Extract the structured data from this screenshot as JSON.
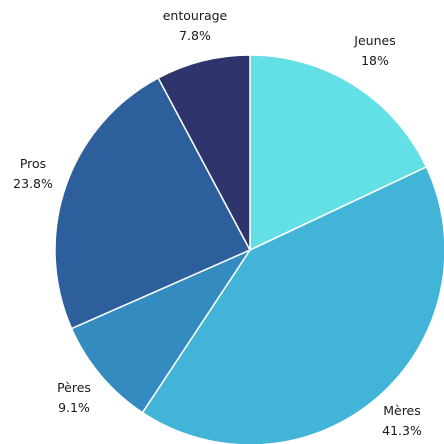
{
  "chart_data": {
    "type": "pie",
    "title": "",
    "start_angle_deg": 0,
    "direction": "clockwise",
    "slices": [
      {
        "label": "Jeunes",
        "value": 18,
        "value_label": "18%",
        "color": "#63E0E6"
      },
      {
        "label": "Mères",
        "value": 41.3,
        "value_label": "41.3%",
        "color": "#42B4D8"
      },
      {
        "label": "Pères",
        "value": 9.1,
        "value_label": "9.1%",
        "color": "#348BBF"
      },
      {
        "label": "Pros",
        "value": 23.8,
        "value_label": "23.8%",
        "color": "#2D5F9C"
      },
      {
        "label": "entourage",
        "value": 7.8,
        "value_label": "7.8%",
        "color": "#2E356C"
      }
    ]
  }
}
